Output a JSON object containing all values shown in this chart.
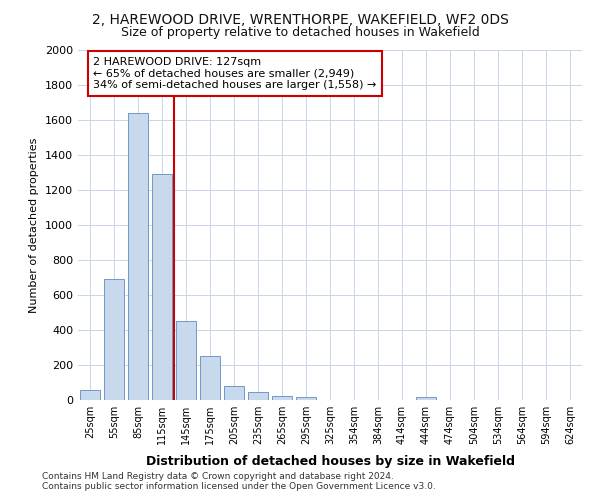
{
  "title": "2, HAREWOOD DRIVE, WRENTHORPE, WAKEFIELD, WF2 0DS",
  "subtitle": "Size of property relative to detached houses in Wakefield",
  "xlabel": "Distribution of detached houses by size in Wakefield",
  "ylabel": "Number of detached properties",
  "bins": [
    "25sqm",
    "55sqm",
    "85sqm",
    "115sqm",
    "145sqm",
    "175sqm",
    "205sqm",
    "235sqm",
    "265sqm",
    "295sqm",
    "325sqm",
    "354sqm",
    "384sqm",
    "414sqm",
    "444sqm",
    "474sqm",
    "504sqm",
    "534sqm",
    "564sqm",
    "594sqm",
    "624sqm"
  ],
  "values": [
    60,
    690,
    1640,
    1290,
    450,
    250,
    80,
    45,
    25,
    20,
    0,
    0,
    0,
    0,
    20,
    0,
    0,
    0,
    0,
    0,
    0
  ],
  "bar_color": "#c8d9ee",
  "bar_edge_color": "#7098c8",
  "vline_index": 3.5,
  "vline_color": "#cc0000",
  "annotation_text": "2 HAREWOOD DRIVE: 127sqm\n← 65% of detached houses are smaller (2,949)\n34% of semi-detached houses are larger (1,558) →",
  "annotation_box_facecolor": "#ffffff",
  "annotation_box_edgecolor": "#cc0000",
  "ylim_max": 2000,
  "yticks": [
    0,
    200,
    400,
    600,
    800,
    1000,
    1200,
    1400,
    1600,
    1800,
    2000
  ],
  "grid_color": "#c8d4e8",
  "bg_color": "#ffffff",
  "footnote_line1": "Contains HM Land Registry data © Crown copyright and database right 2024.",
  "footnote_line2": "Contains public sector information licensed under the Open Government Licence v3.0."
}
